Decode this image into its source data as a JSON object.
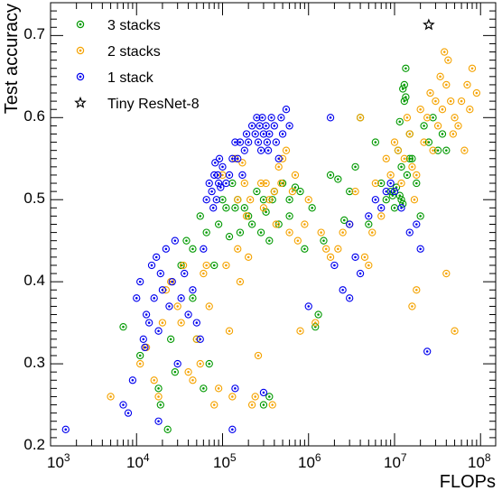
{
  "chart_data": {
    "type": "scatter",
    "x_scale": "log",
    "x_range": [
      1000,
      150000000
    ],
    "y_range": [
      0.2,
      0.74
    ],
    "xlabel": "FLOPs",
    "ylabel": "Test accuracy",
    "x_ticks": [
      {
        "base": "10",
        "exp": "3"
      },
      {
        "base": "10",
        "exp": "4"
      },
      {
        "base": "10",
        "exp": "5"
      },
      {
        "base": "10",
        "exp": "6"
      },
      {
        "base": "10",
        "exp": "7"
      },
      {
        "base": "10",
        "exp": "8"
      }
    ],
    "y_ticks": [
      "0.2",
      "0.3",
      "0.4",
      "0.5",
      "0.6",
      "0.7"
    ],
    "grid": false,
    "legend_position": "top-left",
    "series": [
      {
        "name": "3 stacks",
        "color": "#009900",
        "marker": "circle",
        "points": [
          [
            7000,
            0.345
          ],
          [
            11000,
            0.31
          ],
          [
            18000,
            0.27
          ],
          [
            19000,
            0.25
          ],
          [
            23000,
            0.22
          ],
          [
            25000,
            0.33
          ],
          [
            28000,
            0.29
          ],
          [
            33000,
            0.42
          ],
          [
            38000,
            0.45
          ],
          [
            45000,
            0.44
          ],
          [
            50000,
            0.33
          ],
          [
            55000,
            0.48
          ],
          [
            60000,
            0.27
          ],
          [
            65000,
            0.46
          ],
          [
            70000,
            0.3
          ],
          [
            80000,
            0.42
          ],
          [
            90000,
            0.47
          ],
          [
            100000,
            0.5
          ],
          [
            110000,
            0.49
          ],
          [
            120000,
            0.455
          ],
          [
            130000,
            0.52
          ],
          [
            140000,
            0.49
          ],
          [
            150000,
            0.5
          ],
          [
            160000,
            0.46
          ],
          [
            180000,
            0.49
          ],
          [
            200000,
            0.48
          ],
          [
            220000,
            0.47
          ],
          [
            250000,
            0.51
          ],
          [
            280000,
            0.46
          ],
          [
            300000,
            0.5
          ],
          [
            320000,
            0.485
          ],
          [
            350000,
            0.45
          ],
          [
            380000,
            0.5
          ],
          [
            400000,
            0.51
          ],
          [
            450000,
            0.47
          ],
          [
            500000,
            0.52
          ],
          [
            600000,
            0.5
          ],
          [
            700000,
            0.515
          ],
          [
            800000,
            0.51
          ],
          [
            900000,
            0.44
          ],
          [
            1100000,
            0.49
          ],
          [
            1300000,
            0.36
          ],
          [
            1500000,
            0.45
          ],
          [
            1800000,
            0.53
          ],
          [
            2200000,
            0.525
          ],
          [
            2600000,
            0.475
          ],
          [
            3000000,
            0.51
          ],
          [
            3500000,
            0.54
          ],
          [
            4000000,
            0.6
          ],
          [
            5000000,
            0.47
          ],
          [
            6000000,
            0.57
          ],
          [
            7000000,
            0.52
          ],
          [
            8000000,
            0.5
          ],
          [
            9000000,
            0.51
          ],
          [
            10000000,
            0.49
          ],
          [
            11000000,
            0.56
          ],
          [
            12000000,
            0.54
          ],
          [
            13000000,
            0.62
          ],
          [
            14000000,
            0.53
          ],
          [
            15000000,
            0.58
          ],
          [
            16000000,
            0.55
          ],
          [
            18000000,
            0.52
          ],
          [
            20000000,
            0.48
          ],
          [
            22000000,
            0.59
          ],
          [
            25000000,
            0.57
          ],
          [
            28000000,
            0.6
          ],
          [
            32000000,
            0.56
          ],
          [
            36000000,
            0.58
          ],
          [
            40000000,
            0.56
          ],
          [
            11500000,
            0.595
          ],
          [
            12500000,
            0.635
          ],
          [
            13500000,
            0.66
          ],
          [
            11500000,
            0.505
          ],
          [
            12000000,
            0.5
          ],
          [
            12500000,
            0.495
          ],
          [
            13000000,
            0.64
          ],
          [
            13500000,
            0.625
          ],
          [
            10500000,
            0.515
          ],
          [
            9500000,
            0.505
          ],
          [
            15000000,
            0.55
          ],
          [
            300000,
            0.25
          ],
          [
            350000,
            0.26
          ],
          [
            45000,
            0.38
          ],
          [
            1200000,
            0.345
          ],
          [
            600000,
            0.48
          ]
        ]
      },
      {
        "name": "2 stacks",
        "color": "#f5a300",
        "marker": "circle",
        "points": [
          [
            5000,
            0.26
          ],
          [
            11000,
            0.3
          ],
          [
            13000,
            0.32
          ],
          [
            16000,
            0.28
          ],
          [
            18000,
            0.26
          ],
          [
            20000,
            0.35
          ],
          [
            22000,
            0.39
          ],
          [
            25000,
            0.4
          ],
          [
            30000,
            0.37
          ],
          [
            33000,
            0.35
          ],
          [
            35000,
            0.42
          ],
          [
            40000,
            0.29
          ],
          [
            45000,
            0.28
          ],
          [
            50000,
            0.33
          ],
          [
            55000,
            0.3
          ],
          [
            60000,
            0.41
          ],
          [
            65000,
            0.42
          ],
          [
            70000,
            0.37
          ],
          [
            80000,
            0.25
          ],
          [
            90000,
            0.27
          ],
          [
            100000,
            0.53
          ],
          [
            110000,
            0.42
          ],
          [
            120000,
            0.34
          ],
          [
            130000,
            0.26
          ],
          [
            140000,
            0.55
          ],
          [
            150000,
            0.5
          ],
          [
            160000,
            0.4
          ],
          [
            170000,
            0.545
          ],
          [
            180000,
            0.52
          ],
          [
            190000,
            0.48
          ],
          [
            200000,
            0.43
          ],
          [
            210000,
            0.5
          ],
          [
            220000,
            0.25
          ],
          [
            240000,
            0.26
          ],
          [
            260000,
            0.31
          ],
          [
            280000,
            0.52
          ],
          [
            300000,
            0.49
          ],
          [
            320000,
            0.52
          ],
          [
            350000,
            0.5
          ],
          [
            380000,
            0.25
          ],
          [
            400000,
            0.51
          ],
          [
            420000,
            0.47
          ],
          [
            450000,
            0.54
          ],
          [
            480000,
            0.52
          ],
          [
            500000,
            0.55
          ],
          [
            550000,
            0.56
          ],
          [
            600000,
            0.46
          ],
          [
            650000,
            0.51
          ],
          [
            700000,
            0.53
          ],
          [
            750000,
            0.45
          ],
          [
            800000,
            0.34
          ],
          [
            900000,
            0.47
          ],
          [
            1000000,
            0.5
          ],
          [
            1200000,
            0.35
          ],
          [
            1400000,
            0.46
          ],
          [
            1600000,
            0.44
          ],
          [
            1800000,
            0.43
          ],
          [
            2200000,
            0.44
          ],
          [
            2500000,
            0.46
          ],
          [
            3000000,
            0.47
          ],
          [
            3500000,
            0.51
          ],
          [
            4000000,
            0.6
          ],
          [
            4500000,
            0.43
          ],
          [
            5000000,
            0.42
          ],
          [
            5500000,
            0.46
          ],
          [
            6000000,
            0.52
          ],
          [
            7000000,
            0.48
          ],
          [
            8000000,
            0.55
          ],
          [
            9000000,
            0.53
          ],
          [
            10000000,
            0.57
          ],
          [
            11000000,
            0.56
          ],
          [
            12000000,
            0.52
          ],
          [
            13000000,
            0.55
          ],
          [
            14000000,
            0.6
          ],
          [
            15000000,
            0.58
          ],
          [
            16000000,
            0.54
          ],
          [
            17000000,
            0.5
          ],
          [
            18000000,
            0.53
          ],
          [
            20000000,
            0.61
          ],
          [
            22000000,
            0.57
          ],
          [
            24000000,
            0.6
          ],
          [
            26000000,
            0.63
          ],
          [
            28000000,
            0.56
          ],
          [
            30000000,
            0.62
          ],
          [
            32000000,
            0.59
          ],
          [
            34000000,
            0.65
          ],
          [
            36000000,
            0.61
          ],
          [
            38000000,
            0.68
          ],
          [
            40000000,
            0.64
          ],
          [
            42000000,
            0.67
          ],
          [
            45000000,
            0.62
          ],
          [
            48000000,
            0.58
          ],
          [
            50000000,
            0.6
          ],
          [
            55000000,
            0.59
          ],
          [
            60000000,
            0.62
          ],
          [
            65000000,
            0.56
          ],
          [
            70000000,
            0.64
          ],
          [
            75000000,
            0.61
          ],
          [
            80000000,
            0.66
          ],
          [
            90000000,
            0.63
          ],
          [
            16000000,
            0.37
          ],
          [
            18000000,
            0.39
          ],
          [
            40000000,
            0.41
          ],
          [
            50000000,
            0.34
          ],
          [
            150000,
            0.44
          ]
        ]
      },
      {
        "name": "1 stack",
        "color": "#0000ee",
        "marker": "circle",
        "points": [
          [
            1500,
            0.22
          ],
          [
            7000,
            0.25
          ],
          [
            8000,
            0.24
          ],
          [
            9000,
            0.28
          ],
          [
            10000,
            0.38
          ],
          [
            11000,
            0.4
          ],
          [
            12000,
            0.33
          ],
          [
            12500,
            0.32
          ],
          [
            13000,
            0.36
          ],
          [
            14000,
            0.35
          ],
          [
            15000,
            0.42
          ],
          [
            16000,
            0.38
          ],
          [
            17000,
            0.43
          ],
          [
            18000,
            0.34
          ],
          [
            19000,
            0.41
          ],
          [
            20000,
            0.39
          ],
          [
            22000,
            0.44
          ],
          [
            24000,
            0.37
          ],
          [
            26000,
            0.4
          ],
          [
            28000,
            0.45
          ],
          [
            30000,
            0.3
          ],
          [
            33000,
            0.38
          ],
          [
            36000,
            0.41
          ],
          [
            40000,
            0.36
          ],
          [
            45000,
            0.39
          ],
          [
            50000,
            0.35
          ],
          [
            55000,
            0.33
          ],
          [
            60000,
            0.44
          ],
          [
            65000,
            0.5
          ],
          [
            70000,
            0.52
          ],
          [
            75000,
            0.51
          ],
          [
            78000,
            0.49
          ],
          [
            80000,
            0.53
          ],
          [
            82000,
            0.545
          ],
          [
            85000,
            0.5
          ],
          [
            88000,
            0.53
          ],
          [
            90000,
            0.52
          ],
          [
            92000,
            0.55
          ],
          [
            95000,
            0.515
          ],
          [
            100000,
            0.54
          ],
          [
            110000,
            0.52
          ],
          [
            120000,
            0.53
          ],
          [
            130000,
            0.55
          ],
          [
            140000,
            0.57
          ],
          [
            150000,
            0.55
          ],
          [
            160000,
            0.57
          ],
          [
            170000,
            0.53
          ],
          [
            180000,
            0.56
          ],
          [
            190000,
            0.58
          ],
          [
            200000,
            0.57
          ],
          [
            220000,
            0.59
          ],
          [
            240000,
            0.58
          ],
          [
            250000,
            0.6
          ],
          [
            260000,
            0.57
          ],
          [
            270000,
            0.59
          ],
          [
            280000,
            0.56
          ],
          [
            290000,
            0.6
          ],
          [
            300000,
            0.58
          ],
          [
            320000,
            0.59
          ],
          [
            330000,
            0.57
          ],
          [
            340000,
            0.56
          ],
          [
            350000,
            0.58
          ],
          [
            370000,
            0.6
          ],
          [
            400000,
            0.59
          ],
          [
            420000,
            0.57
          ],
          [
            450000,
            0.55
          ],
          [
            480000,
            0.6
          ],
          [
            500000,
            0.58
          ],
          [
            550000,
            0.61
          ],
          [
            600000,
            0.59
          ],
          [
            300000,
            0.265
          ],
          [
            130000,
            0.22
          ],
          [
            140000,
            0.27
          ],
          [
            1000000,
            0.37
          ],
          [
            2000000,
            0.42
          ],
          [
            2500000,
            0.39
          ],
          [
            3000000,
            0.47
          ],
          [
            3500000,
            0.43
          ],
          [
            4000000,
            0.41
          ],
          [
            5000000,
            0.48
          ],
          [
            6000000,
            0.5
          ],
          [
            7000000,
            0.49
          ],
          [
            8000000,
            0.51
          ],
          [
            9000000,
            0.52
          ],
          [
            10000000,
            0.51
          ],
          [
            12000000,
            0.49
          ],
          [
            15000000,
            0.46
          ],
          [
            18000000,
            0.47
          ],
          [
            20000000,
            0.44
          ],
          [
            18000,
            0.23
          ],
          [
            1800000,
            0.6
          ],
          [
            24000000,
            0.315
          ],
          [
            3000000,
            0.38
          ]
        ]
      },
      {
        "name": "Tiny ResNet-8",
        "color": "#000000",
        "marker": "star",
        "points": [
          [
            25000000,
            0.713
          ]
        ]
      }
    ]
  }
}
